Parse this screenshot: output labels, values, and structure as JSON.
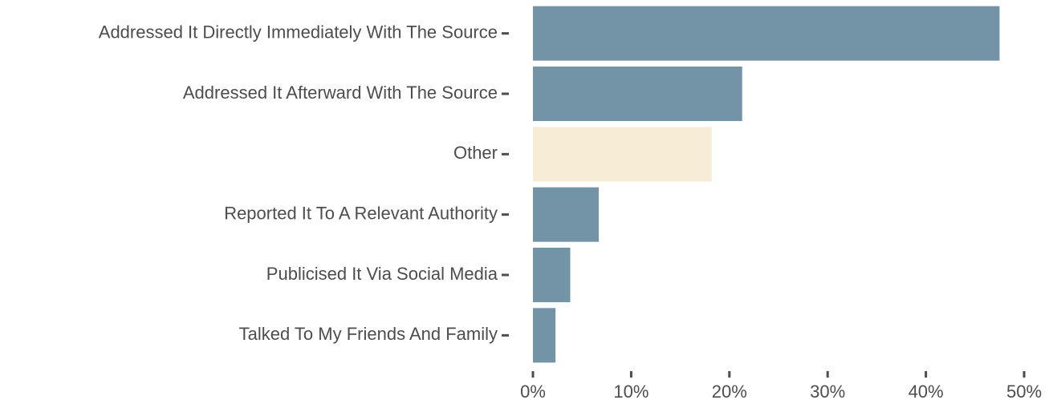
{
  "chart_data": {
    "type": "barh",
    "categories": [
      "Addressed It Directly Immediately With The Source",
      "Addressed It Afterward With The Source",
      "Other",
      "Reported It To A Relevant Authority",
      "Publicised It Via Social Media",
      "Talked To My Friends And Family"
    ],
    "values": [
      47.5,
      21.3,
      18.2,
      6.7,
      3.8,
      2.3
    ],
    "colors": [
      "#7393a7",
      "#7393a7",
      "#f7ecd6",
      "#7393a7",
      "#7393a7",
      "#7393a7"
    ],
    "xlim": [
      0,
      50
    ],
    "xticks": [
      {
        "value": 0,
        "label": "0%"
      },
      {
        "value": 10,
        "label": "10%"
      },
      {
        "value": 20,
        "label": "20%"
      },
      {
        "value": 30,
        "label": "30%"
      },
      {
        "value": 40,
        "label": "40%"
      },
      {
        "value": 50,
        "label": "50%"
      }
    ],
    "grid": false
  }
}
